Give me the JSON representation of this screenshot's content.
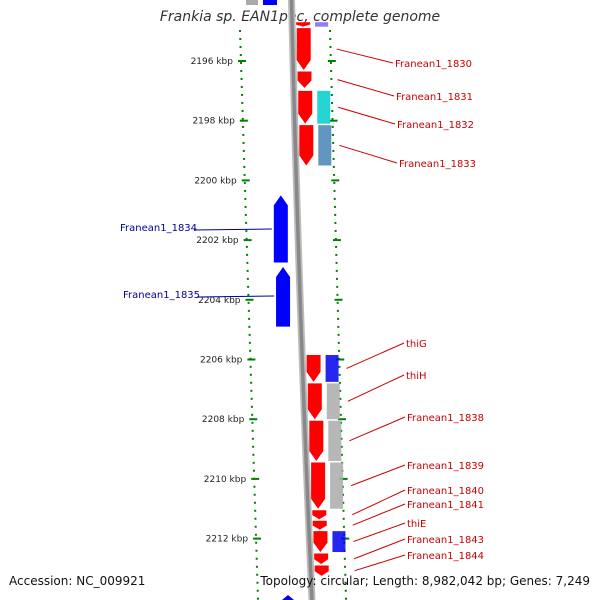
{
  "title": "Frankia sp. EAN1pec, complete genome",
  "accession_label": "Accession: NC_009921",
  "topology_label": "Topology: circular; Length: 8,982,042 bp; Genes: 7,249",
  "colors": {
    "forward_cds": "#ff0000",
    "reverse_cds": "#0000ff",
    "cds_category_purple": "#7b68ee",
    "cds_category_cyan": "#00cdcd",
    "cds_category_steel": "#4682b4",
    "cds_category_blue": "#0000ee",
    "cds_category_gray": "#aaaaaa",
    "forward_label": "#cc0000",
    "reverse_label": "#000099",
    "tick": "#008000",
    "backbone": "#888888"
  },
  "chart_data": {
    "type": "genome-map",
    "unit": "kbp",
    "tick_labels": [
      "2196 kbp",
      "2198 kbp",
      "2200 kbp",
      "2202 kbp",
      "2204 kbp",
      "2206 kbp",
      "2208 kbp",
      "2210 kbp",
      "2212 kbp"
    ],
    "genes": [
      {
        "label": "",
        "strand": "+",
        "start": 2194.7,
        "end": 2194.85,
        "category_color": "#7b68ee"
      },
      {
        "label": "Franean1_1830",
        "strand": "+",
        "start": 2194.9,
        "end": 2196.3,
        "category_color": "#ffffff"
      },
      {
        "label": "Franean1_1831",
        "strand": "+",
        "start": 2196.35,
        "end": 2196.9,
        "category_color": "#ffffff"
      },
      {
        "label": "Franean1_1832",
        "strand": "+",
        "start": 2197.0,
        "end": 2198.1,
        "category_color": "#00cdcd"
      },
      {
        "label": "Franean1_1833",
        "strand": "+",
        "start": 2198.15,
        "end": 2199.5,
        "category_color": "#4682b4"
      },
      {
        "label": "Franean1_1834",
        "strand": "-",
        "start": 2200.5,
        "end": 2202.75,
        "category_color": ""
      },
      {
        "label": "Franean1_1835",
        "strand": "-",
        "start": 2202.9,
        "end": 2204.9,
        "category_color": ""
      },
      {
        "label": "thiG",
        "strand": "+",
        "start": 2205.85,
        "end": 2206.75,
        "category_color": "#0000ee"
      },
      {
        "label": "thiH",
        "strand": "+",
        "start": 2206.8,
        "end": 2208.0,
        "category_color": "#aaaaaa"
      },
      {
        "label": "Franean1_1838",
        "strand": "+",
        "start": 2208.05,
        "end": 2209.4,
        "category_color": "#aaaaaa"
      },
      {
        "label": "Franean1_1839",
        "strand": "+",
        "start": 2209.45,
        "end": 2211.0,
        "category_color": "#aaaaaa"
      },
      {
        "label": "Franean1_1840",
        "strand": "+",
        "start": 2211.05,
        "end": 2211.35,
        "category_color": "#ffffff"
      },
      {
        "label": "Franean1_1841",
        "strand": "+",
        "start": 2211.4,
        "end": 2211.7,
        "category_color": "#ffffff"
      },
      {
        "label": "thiE",
        "strand": "+",
        "start": 2211.75,
        "end": 2212.45,
        "category_color": "#0000ee"
      },
      {
        "label": "Franean1_1843",
        "strand": "+",
        "start": 2212.5,
        "end": 2212.85,
        "category_color": "#ffffff"
      },
      {
        "label": "Franean1_1844",
        "strand": "+",
        "start": 2212.9,
        "end": 2213.25,
        "category_color": "#ffffff"
      }
    ]
  }
}
